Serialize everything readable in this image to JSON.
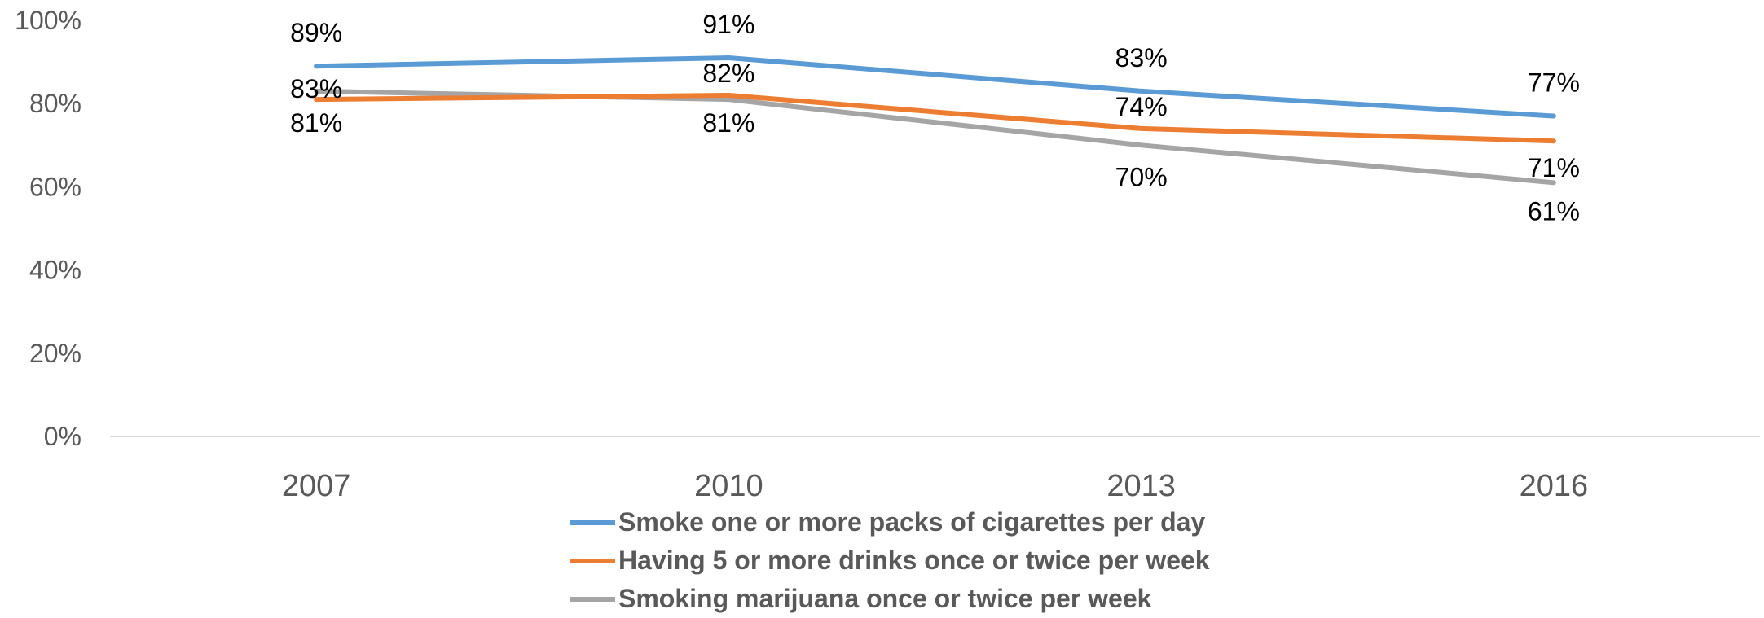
{
  "chart_data": {
    "type": "line",
    "categories": [
      "2007",
      "2010",
      "2013",
      "2016"
    ],
    "series": [
      {
        "name": "Smoke one or more packs of cigarettes per day",
        "values": [
          89,
          91,
          83,
          77
        ],
        "labels": [
          "89%",
          "91%",
          "83%",
          "77%"
        ],
        "color": "#5B9BD5"
      },
      {
        "name": "Having 5 or more drinks once or twice per week",
        "values": [
          81,
          82,
          74,
          71
        ],
        "labels": [
          "81%",
          "82%",
          "74%",
          "71%"
        ],
        "color": "#ED7D31"
      },
      {
        "name": "Smoking marijuana once or twice per week",
        "values": [
          83,
          81,
          70,
          61
        ],
        "labels": [
          "83%",
          "81%",
          "70%",
          "61%"
        ],
        "color": "#A5A5A5"
      }
    ],
    "y_ticks": [
      "0%",
      "20%",
      "40%",
      "60%",
      "80%",
      "100%"
    ],
    "ylim": [
      0,
      100
    ],
    "grid": false,
    "legend_position": "bottom",
    "title": "",
    "xlabel": "",
    "ylabel": ""
  }
}
